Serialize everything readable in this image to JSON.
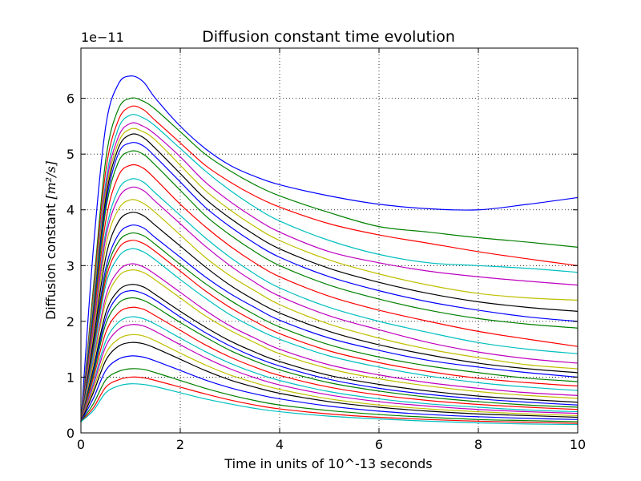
{
  "chart_data": {
    "type": "line",
    "title": "Diffusion constant time evolution",
    "xlabel": "Time in units of 10^-13 seconds",
    "ylabel_prefix": "Diffusion constant ",
    "ylabel_units": "[m²/s]",
    "y_offset_label": "1e−11",
    "xlim": [
      0,
      10
    ],
    "ylim": [
      0,
      6.9
    ],
    "x_ticks": [
      0,
      2,
      4,
      6,
      8,
      10
    ],
    "x_tick_labels": [
      "0",
      "2",
      "4",
      "6",
      "8",
      "10"
    ],
    "y_ticks": [
      0,
      1,
      2,
      3,
      4,
      5,
      6
    ],
    "y_tick_labels": [
      "0",
      "1",
      "2",
      "3",
      "4",
      "5",
      "6"
    ],
    "grid": true,
    "grid_style": "dotted",
    "series_colors": [
      "#0000ff",
      "#008000",
      "#ff0000",
      "#00bfbf",
      "#bf00bf",
      "#bfbf00",
      "#000000"
    ],
    "x": [
      0,
      0.25,
      0.5,
      0.75,
      1,
      1.25,
      1.5,
      2,
      2.5,
      3,
      3.5,
      4,
      5,
      6,
      7,
      8,
      9,
      10
    ],
    "series": [
      {
        "values": [
          0.2,
          3.3,
          5.5,
          6.25,
          6.4,
          6.3,
          6.0,
          5.5,
          5.1,
          4.8,
          4.6,
          4.45,
          4.25,
          4.1,
          4.02,
          4.0,
          4.1,
          4.22
        ]
      },
      {
        "values": [
          0.2,
          2.6,
          4.9,
          5.8,
          6.0,
          5.95,
          5.8,
          5.4,
          5.0,
          4.7,
          4.45,
          4.25,
          3.95,
          3.7,
          3.6,
          3.5,
          3.42,
          3.33
        ]
      },
      {
        "values": [
          0.2,
          2.5,
          4.7,
          5.6,
          5.85,
          5.8,
          5.6,
          5.2,
          4.8,
          4.5,
          4.25,
          4.05,
          3.75,
          3.55,
          3.4,
          3.25,
          3.12,
          3.0
        ]
      },
      {
        "values": [
          0.2,
          2.4,
          4.5,
          5.45,
          5.7,
          5.65,
          5.5,
          5.1,
          4.7,
          4.35,
          4.05,
          3.8,
          3.45,
          3.2,
          3.05,
          3.0,
          2.95,
          2.88
        ]
      },
      {
        "values": [
          0.2,
          2.3,
          4.4,
          5.3,
          5.55,
          5.5,
          5.35,
          4.95,
          4.5,
          4.15,
          3.85,
          3.6,
          3.25,
          3.05,
          2.9,
          2.8,
          2.72,
          2.65
        ]
      },
      {
        "values": [
          0.2,
          2.3,
          4.3,
          5.2,
          5.45,
          5.4,
          5.25,
          4.8,
          4.35,
          4.0,
          3.7,
          3.45,
          3.1,
          2.85,
          2.65,
          2.5,
          2.42,
          2.38
        ]
      },
      {
        "values": [
          0.2,
          2.2,
          4.2,
          5.1,
          5.35,
          5.3,
          5.1,
          4.65,
          4.2,
          3.85,
          3.55,
          3.3,
          2.95,
          2.7,
          2.5,
          2.35,
          2.25,
          2.18
        ]
      },
      {
        "values": [
          0.2,
          2.2,
          4.1,
          5.0,
          5.2,
          5.15,
          4.95,
          4.5,
          4.05,
          3.7,
          3.4,
          3.15,
          2.8,
          2.55,
          2.35,
          2.2,
          2.08,
          2.0
        ]
      },
      {
        "values": [
          0.2,
          2.1,
          4.0,
          4.85,
          5.05,
          5.0,
          4.8,
          4.35,
          3.9,
          3.55,
          3.25,
          3.0,
          2.65,
          2.4,
          2.2,
          2.05,
          1.95,
          1.88
        ]
      },
      {
        "values": [
          0.2,
          2.0,
          3.8,
          4.6,
          4.8,
          4.75,
          4.55,
          4.1,
          3.7,
          3.35,
          3.05,
          2.8,
          2.45,
          2.2,
          2.0,
          1.82,
          1.68,
          1.55
        ]
      },
      {
        "values": [
          0.2,
          1.9,
          3.6,
          4.35,
          4.55,
          4.5,
          4.3,
          3.9,
          3.5,
          3.15,
          2.85,
          2.6,
          2.25,
          2.0,
          1.8,
          1.62,
          1.5,
          1.42
        ]
      },
      {
        "values": [
          0.2,
          1.85,
          3.5,
          4.2,
          4.4,
          4.35,
          4.15,
          3.75,
          3.35,
          3.0,
          2.7,
          2.45,
          2.1,
          1.85,
          1.62,
          1.45,
          1.33,
          1.25
        ]
      },
      {
        "values": [
          0.2,
          1.75,
          3.35,
          4.0,
          4.18,
          4.12,
          3.95,
          3.55,
          3.15,
          2.82,
          2.55,
          2.3,
          1.95,
          1.7,
          1.5,
          1.35,
          1.22,
          1.15
        ]
      },
      {
        "values": [
          0.2,
          1.65,
          3.15,
          3.78,
          3.95,
          3.9,
          3.72,
          3.35,
          2.98,
          2.65,
          2.38,
          2.15,
          1.82,
          1.58,
          1.4,
          1.25,
          1.15,
          1.08
        ]
      },
      {
        "values": [
          0.2,
          1.55,
          2.95,
          3.55,
          3.72,
          3.68,
          3.5,
          3.15,
          2.8,
          2.5,
          2.25,
          2.02,
          1.7,
          1.48,
          1.3,
          1.18,
          1.08,
          1.0
        ]
      },
      {
        "values": [
          0.2,
          1.5,
          2.85,
          3.42,
          3.58,
          3.54,
          3.38,
          3.02,
          2.68,
          2.38,
          2.12,
          1.9,
          1.58,
          1.36,
          1.2,
          1.08,
          0.98,
          0.92
        ]
      },
      {
        "values": [
          0.2,
          1.45,
          2.75,
          3.3,
          3.45,
          3.4,
          3.25,
          2.9,
          2.55,
          2.25,
          2.0,
          1.78,
          1.47,
          1.26,
          1.1,
          0.98,
          0.9,
          0.84
        ]
      },
      {
        "values": [
          0.2,
          1.4,
          2.65,
          3.15,
          3.3,
          3.25,
          3.1,
          2.75,
          2.42,
          2.12,
          1.88,
          1.68,
          1.38,
          1.18,
          1.02,
          0.9,
          0.82,
          0.76
        ]
      },
      {
        "values": [
          0.2,
          1.3,
          2.45,
          2.9,
          3.03,
          2.98,
          2.84,
          2.52,
          2.2,
          1.92,
          1.7,
          1.5,
          1.22,
          1.04,
          0.9,
          0.8,
          0.72,
          0.67
        ]
      },
      {
        "values": [
          0.2,
          1.25,
          2.35,
          2.8,
          2.92,
          2.88,
          2.74,
          2.42,
          2.1,
          1.84,
          1.62,
          1.42,
          1.15,
          0.97,
          0.84,
          0.74,
          0.67,
          0.62
        ]
      },
      {
        "values": [
          0.2,
          1.15,
          2.15,
          2.55,
          2.66,
          2.62,
          2.48,
          2.18,
          1.9,
          1.65,
          1.45,
          1.28,
          1.03,
          0.87,
          0.75,
          0.66,
          0.6,
          0.55
        ]
      },
      {
        "values": [
          0.2,
          1.1,
          2.05,
          2.45,
          2.55,
          2.5,
          2.38,
          2.08,
          1.8,
          1.56,
          1.36,
          1.2,
          0.96,
          0.8,
          0.69,
          0.61,
          0.55,
          0.5
        ]
      },
      {
        "values": [
          0.2,
          1.05,
          1.95,
          2.32,
          2.42,
          2.38,
          2.26,
          1.98,
          1.72,
          1.48,
          1.29,
          1.13,
          0.9,
          0.75,
          0.64,
          0.56,
          0.5,
          0.46
        ]
      },
      {
        "values": [
          0.2,
          0.98,
          1.8,
          2.15,
          2.25,
          2.22,
          2.1,
          1.84,
          1.58,
          1.36,
          1.18,
          1.03,
          0.82,
          0.68,
          0.58,
          0.51,
          0.46,
          0.42
        ]
      },
      {
        "values": [
          0.2,
          0.9,
          1.65,
          1.98,
          2.08,
          2.05,
          1.95,
          1.7,
          1.46,
          1.25,
          1.08,
          0.94,
          0.74,
          0.61,
          0.52,
          0.46,
          0.41,
          0.38
        ]
      },
      {
        "values": [
          0.2,
          0.85,
          1.55,
          1.85,
          1.94,
          1.92,
          1.82,
          1.58,
          1.35,
          1.15,
          0.99,
          0.86,
          0.68,
          0.56,
          0.48,
          0.42,
          0.38,
          0.35
        ]
      },
      {
        "values": [
          0.2,
          0.78,
          1.42,
          1.68,
          1.76,
          1.74,
          1.65,
          1.43,
          1.22,
          1.04,
          0.9,
          0.78,
          0.61,
          0.5,
          0.43,
          0.38,
          0.34,
          0.31
        ]
      },
      {
        "values": [
          0.2,
          0.72,
          1.3,
          1.55,
          1.62,
          1.6,
          1.52,
          1.32,
          1.12,
          0.95,
          0.82,
          0.71,
          0.56,
          0.46,
          0.39,
          0.34,
          0.31,
          0.28
        ]
      },
      {
        "values": [
          0.2,
          0.62,
          1.12,
          1.32,
          1.38,
          1.36,
          1.29,
          1.12,
          0.95,
          0.81,
          0.7,
          0.61,
          0.48,
          0.39,
          0.33,
          0.29,
          0.26,
          0.24
        ]
      },
      {
        "values": [
          0.2,
          0.52,
          0.95,
          1.1,
          1.15,
          1.14,
          1.08,
          0.94,
          0.8,
          0.68,
          0.58,
          0.5,
          0.4,
          0.33,
          0.28,
          0.24,
          0.22,
          0.2
        ]
      },
      {
        "values": [
          0.2,
          0.45,
          0.82,
          0.95,
          1.0,
          0.99,
          0.94,
          0.82,
          0.7,
          0.59,
          0.5,
          0.43,
          0.34,
          0.28,
          0.24,
          0.21,
          0.19,
          0.17
        ]
      },
      {
        "values": [
          0.2,
          0.4,
          0.72,
          0.84,
          0.88,
          0.87,
          0.83,
          0.72,
          0.61,
          0.52,
          0.44,
          0.38,
          0.3,
          0.25,
          0.21,
          0.18,
          0.16,
          0.15
        ]
      }
    ]
  }
}
